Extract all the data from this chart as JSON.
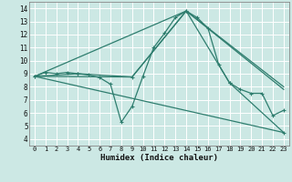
{
  "title": "",
  "xlabel": "Humidex (Indice chaleur)",
  "ylabel": "",
  "bg_color": "#cce8e4",
  "grid_color": "#ffffff",
  "line_color": "#2e7d6e",
  "xlim": [
    -0.5,
    23.5
  ],
  "ylim": [
    3.5,
    14.5
  ],
  "xticks": [
    0,
    1,
    2,
    3,
    4,
    5,
    6,
    7,
    8,
    9,
    10,
    11,
    12,
    13,
    14,
    15,
    16,
    17,
    18,
    19,
    20,
    21,
    22,
    23
  ],
  "yticks": [
    4,
    5,
    6,
    7,
    8,
    9,
    10,
    11,
    12,
    13,
    14
  ],
  "line1_x": [
    0,
    1,
    2,
    3,
    4,
    5,
    6,
    7,
    8,
    9,
    10,
    11,
    12,
    13,
    14,
    15,
    16,
    17,
    18,
    19,
    20,
    21,
    22,
    23
  ],
  "line1_y": [
    8.8,
    9.1,
    9.0,
    9.1,
    9.0,
    8.9,
    8.7,
    8.2,
    5.3,
    6.5,
    8.8,
    11.0,
    12.1,
    13.3,
    13.8,
    13.3,
    12.5,
    9.7,
    8.3,
    7.8,
    7.5,
    7.5,
    5.8,
    6.2
  ],
  "line2_x": [
    0,
    4,
    9,
    14,
    18,
    23
  ],
  "line2_y": [
    8.8,
    9.0,
    8.75,
    13.8,
    8.3,
    4.5
  ],
  "line3_x": [
    0,
    23
  ],
  "line3_y": [
    8.8,
    4.5
  ],
  "line4_x": [
    0,
    9,
    14,
    23
  ],
  "line4_y": [
    8.8,
    8.75,
    13.8,
    7.8
  ],
  "line5_x": [
    0,
    14,
    23
  ],
  "line5_y": [
    8.8,
    13.8,
    8.0
  ]
}
